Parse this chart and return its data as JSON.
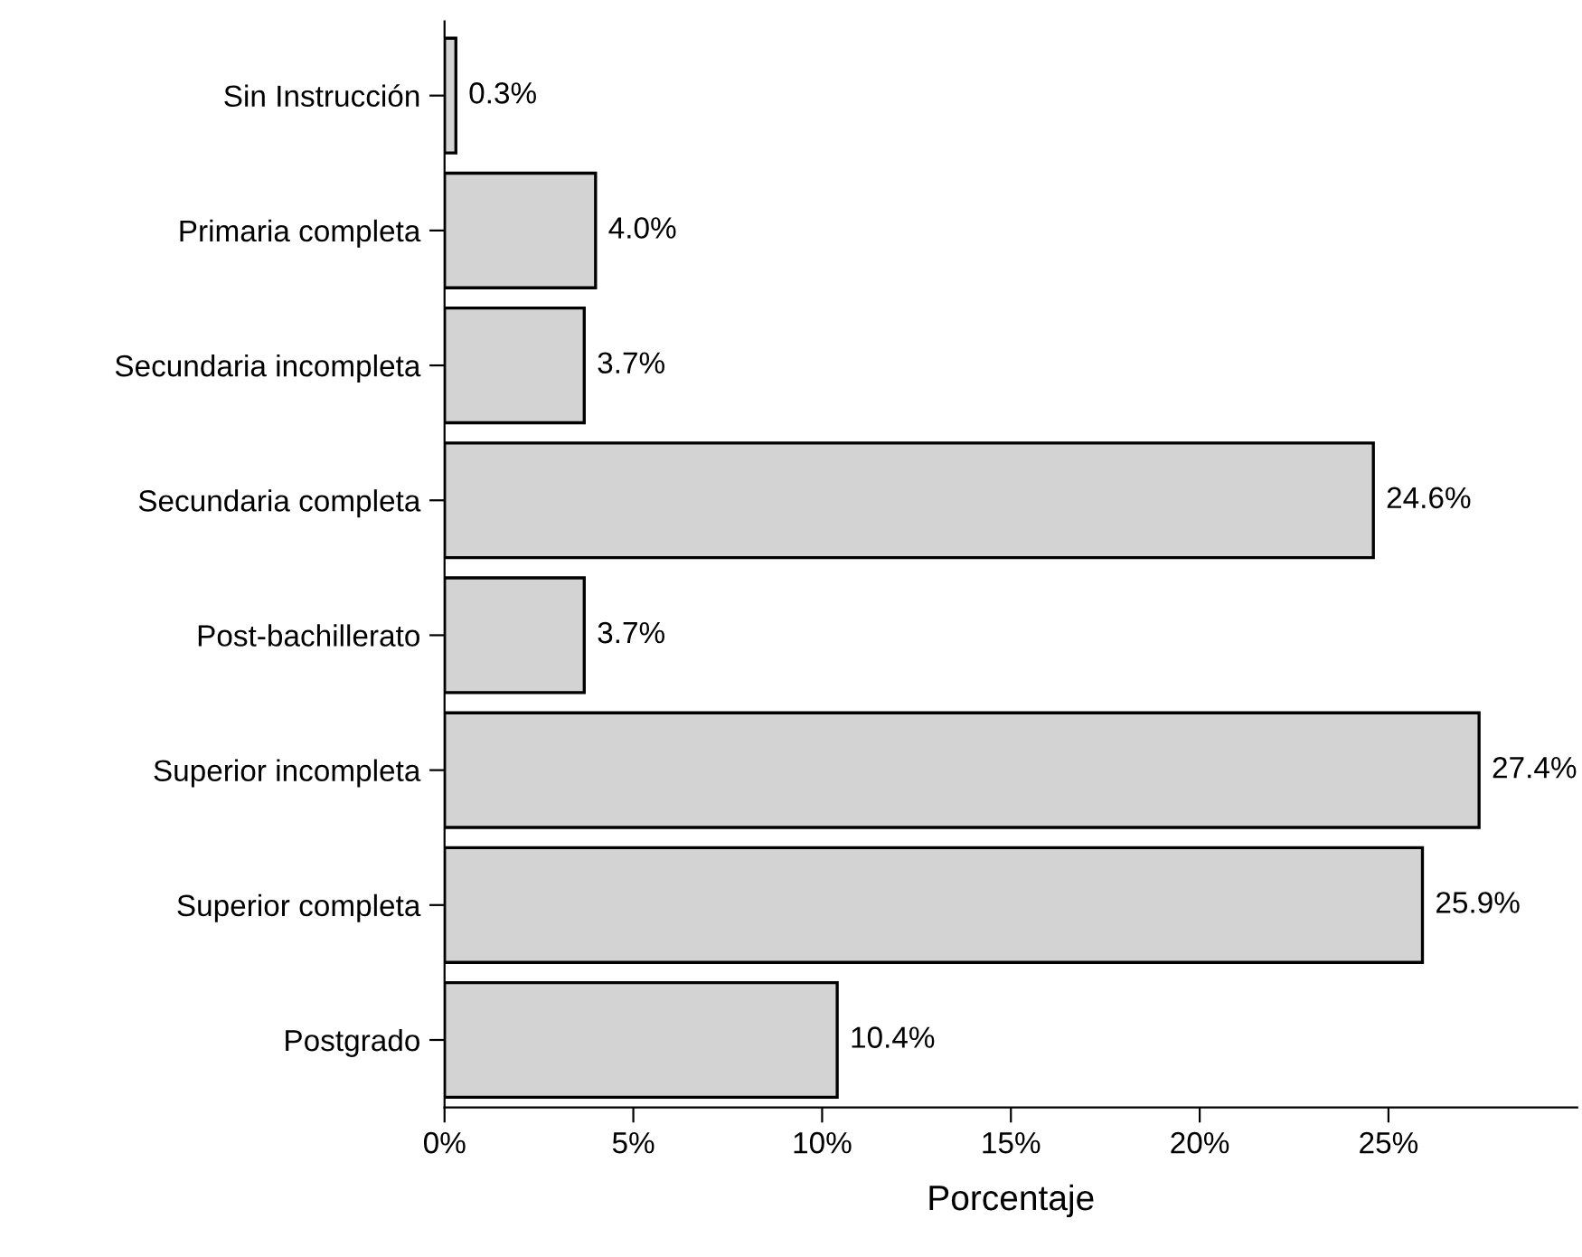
{
  "chart_data": {
    "type": "bar",
    "orientation": "horizontal",
    "xlabel": "Porcentaje",
    "categories": [
      "Sin Instrucción",
      "Primaria completa",
      "Secundaria incompleta",
      "Secundaria completa",
      "Post-bachillerato",
      "Superior incompleta",
      "Superior completa",
      "Postgrado"
    ],
    "values": [
      0.3,
      4.0,
      3.7,
      24.6,
      3.7,
      27.4,
      25.9,
      10.4
    ],
    "value_labels": [
      "0.3%",
      "4.0%",
      "3.7%",
      "24.6%",
      "3.7%",
      "27.4%",
      "25.9%",
      "10.4%"
    ],
    "color": "#d3d3d3",
    "xlim": [
      0,
      30
    ],
    "xticks": [
      {
        "value": 0,
        "label": "0%"
      },
      {
        "value": 5,
        "label": "5%"
      },
      {
        "value": 10,
        "label": "10%"
      },
      {
        "value": 15,
        "label": "15%"
      },
      {
        "value": 20,
        "label": "20%"
      },
      {
        "value": 25,
        "label": "25%"
      }
    ],
    "grid": false,
    "legend": false
  }
}
